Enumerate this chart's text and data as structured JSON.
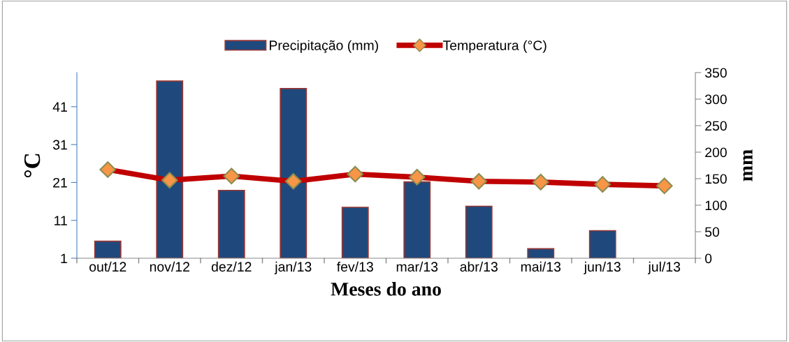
{
  "chart_data": {
    "type": "bar",
    "categories": [
      "out/12",
      "nov/12",
      "dez/12",
      "jan/13",
      "fev/13",
      "mar/13",
      "abr/13",
      "mai/13",
      "jun/13",
      "jul/13"
    ],
    "series": [
      {
        "name": "Precipitação (mm)",
        "axis": "y2",
        "color": "#1f497d",
        "values": [
          32,
          334,
          128,
          320,
          96,
          144,
          98,
          18,
          52,
          null
        ]
      },
      {
        "name": "Temperatura (°C)",
        "type": "line",
        "axis": "y",
        "color": "#c00000",
        "marker": "diamond",
        "values": [
          24.4,
          21.6,
          22.7,
          21.3,
          23.2,
          22.4,
          21.3,
          21.1,
          20.5,
          20.1
        ]
      }
    ],
    "xlabel": "Meses do ano",
    "ylabel": "°C",
    "y2label": "mm",
    "ylim": [
      1,
      50
    ],
    "yticks": [
      1,
      11,
      21,
      31,
      41
    ],
    "y2lim": [
      0,
      350
    ],
    "y2ticks": [
      0,
      50,
      100,
      150,
      200,
      250,
      300,
      350
    ],
    "legend": "top",
    "grid": false
  }
}
